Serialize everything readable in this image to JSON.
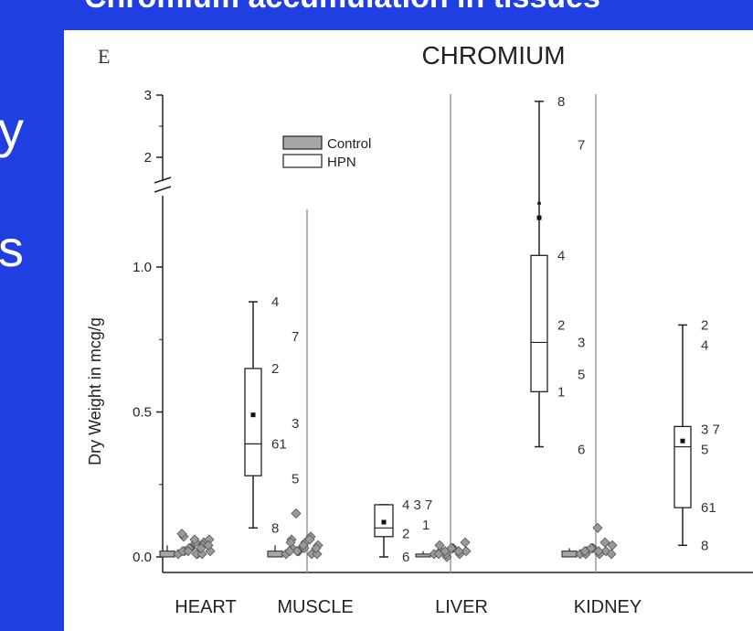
{
  "slide": {
    "title": "Chromium accumulation in tissues",
    "left_fragments": [
      "y",
      "s"
    ]
  },
  "chart_data": {
    "type": "box",
    "panel_letter": "E",
    "title": "CHROMIUM",
    "ylabel": "Dry Weight in mcg/g",
    "axis_break": true,
    "y_ticks_lower": [
      "0.0",
      "0.5",
      "1.0"
    ],
    "y_ticks_upper": [
      "2",
      "3"
    ],
    "categories": [
      "HEART",
      "MUSCLE",
      "LIVER",
      "KIDNEY"
    ],
    "legend": {
      "position": "top-center",
      "entries": [
        "Control",
        "HPN"
      ]
    },
    "series": [
      {
        "name": "Control",
        "groups": [
          {
            "category": "HEART",
            "min": 0.0,
            "q1": 0.0,
            "median": 0.01,
            "q3": 0.02,
            "max": 0.04,
            "points": [
              0.01,
              0.02,
              0.03,
              0.01,
              0.05,
              0.02,
              0.07,
              0.03,
              0.01,
              0.04,
              0.06,
              0.02,
              0.03,
              0.05,
              0.01,
              0.04,
              0.08,
              0.02,
              0.06,
              0.03
            ]
          },
          {
            "category": "MUSCLE",
            "min": 0.0,
            "q1": 0.0,
            "median": 0.01,
            "q3": 0.02,
            "max": 0.04,
            "points": [
              0.01,
              0.03,
              0.02,
              0.05,
              0.01,
              0.04,
              0.06,
              0.02,
              0.03,
              0.07,
              0.01,
              0.05,
              0.02,
              0.04,
              0.06,
              0.03,
              0.02,
              0.15
            ]
          },
          {
            "category": "LIVER",
            "min": 0.0,
            "q1": 0.0,
            "median": 0.01,
            "q3": 0.01,
            "max": 0.02,
            "points": [
              0.01,
              0.02,
              0.0,
              0.03,
              0.01,
              0.02,
              0.04,
              0.01,
              0.03,
              0.02,
              0.05,
              0.01,
              0.02,
              0.03
            ]
          },
          {
            "category": "KIDNEY",
            "min": 0.0,
            "q1": 0.0,
            "median": 0.01,
            "q3": 0.02,
            "max": 0.03,
            "points": [
              0.01,
              0.02,
              0.03,
              0.01,
              0.02,
              0.04,
              0.01,
              0.03,
              0.02,
              0.05,
              0.01,
              0.02,
              0.03,
              0.1
            ]
          }
        ]
      },
      {
        "name": "HPN",
        "groups": [
          {
            "category": "HEART",
            "min": 0.1,
            "q1": 0.28,
            "median": 0.39,
            "q3": 0.65,
            "max": 0.88,
            "mean": 0.49,
            "labels": [
              {
                "text": "4",
                "y": 0.88,
                "side": 0
              },
              {
                "text": "7",
                "y": 0.76,
                "side": 1
              },
              {
                "text": "2",
                "y": 0.65,
                "side": 0
              },
              {
                "text": "3",
                "y": 0.46,
                "side": 1
              },
              {
                "text": "61",
                "y": 0.39,
                "side": 0
              },
              {
                "text": "5",
                "y": 0.27,
                "side": 1
              },
              {
                "text": "8",
                "y": 0.1,
                "side": 0
              }
            ]
          },
          {
            "category": "MUSCLE",
            "min": 0.0,
            "q1": 0.07,
            "median": 0.1,
            "q3": 0.18,
            "max": 0.18,
            "mean": 0.12,
            "labels": [
              {
                "text": "4 3 7",
                "y": 0.18,
                "side": 0
              },
              {
                "text": "1",
                "y": 0.11,
                "side": 1
              },
              {
                "text": "2",
                "y": 0.08,
                "side": 0
              },
              {
                "text": "6",
                "y": 0.0,
                "side": 0
              }
            ]
          },
          {
            "category": "LIVER",
            "min": 0.38,
            "q1": 0.57,
            "median": 0.74,
            "q3": 1.04,
            "max": 2.9,
            "mean": 1.17,
            "outlier": 1.26,
            "labels": [
              {
                "text": "8",
                "y": 2.9,
                "side": 0
              },
              {
                "text": "7",
                "y": 2.2,
                "side": 1
              },
              {
                "text": "4",
                "y": 1.04,
                "side": 0
              },
              {
                "text": "2",
                "y": 0.8,
                "side": 0
              },
              {
                "text": "3",
                "y": 0.74,
                "side": 1
              },
              {
                "text": "5",
                "y": 0.63,
                "side": 1
              },
              {
                "text": "1",
                "y": 0.57,
                "side": 0
              },
              {
                "text": "6",
                "y": 0.37,
                "side": 1
              }
            ]
          },
          {
            "category": "KIDNEY",
            "min": 0.04,
            "q1": 0.17,
            "median": 0.38,
            "q3": 0.45,
            "max": 0.8,
            "mean": 0.4,
            "labels": [
              {
                "text": "2",
                "y": 0.8,
                "side": 0
              },
              {
                "text": "4",
                "y": 0.73,
                "side": 0
              },
              {
                "text": "3 7",
                "y": 0.44,
                "side": 0
              },
              {
                "text": "5",
                "y": 0.37,
                "side": 0
              },
              {
                "text": "61",
                "y": 0.17,
                "side": 0
              },
              {
                "text": "8",
                "y": 0.04,
                "side": 0
              }
            ]
          }
        ]
      }
    ]
  }
}
